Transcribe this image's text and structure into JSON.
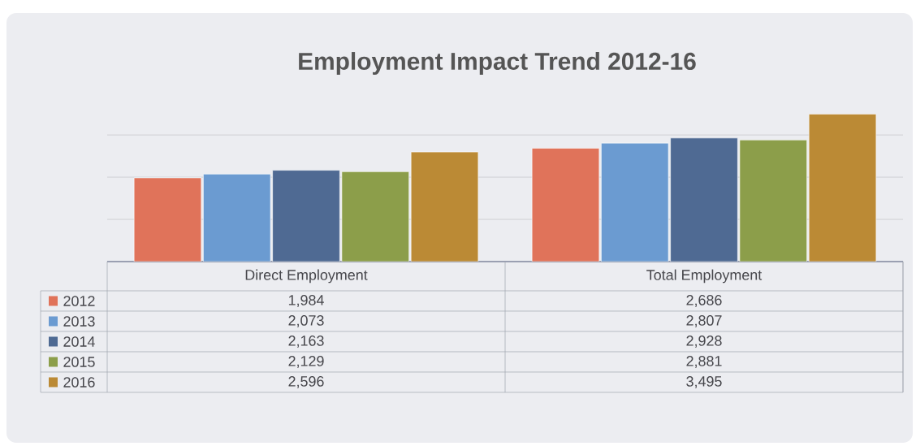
{
  "chart_data": {
    "type": "bar",
    "title": "Employment Impact Trend 2012-16",
    "categories": [
      "Direct Employment",
      "Total Employment"
    ],
    "series": [
      {
        "name": "2012",
        "color": "#e0735a",
        "values": [
          1984,
          2686
        ],
        "value_labels": [
          "1,984",
          "2,686"
        ]
      },
      {
        "name": "2013",
        "color": "#6b9bd1",
        "values": [
          2073,
          2807
        ],
        "value_labels": [
          "2,073",
          "2,807"
        ]
      },
      {
        "name": "2014",
        "color": "#4f6a93",
        "values": [
          2163,
          2928
        ],
        "value_labels": [
          "2,163",
          "2,928"
        ]
      },
      {
        "name": "2015",
        "color": "#8c9e4a",
        "values": [
          2129,
          2881
        ],
        "value_labels": [
          "2,129",
          "2,881"
        ]
      },
      {
        "name": "2016",
        "color": "#bb8a35",
        "values": [
          2596,
          3495
        ],
        "value_labels": [
          "2,596",
          "3,495"
        ]
      }
    ],
    "grid": "y",
    "legend": "bottom",
    "tick_labels": "x"
  }
}
